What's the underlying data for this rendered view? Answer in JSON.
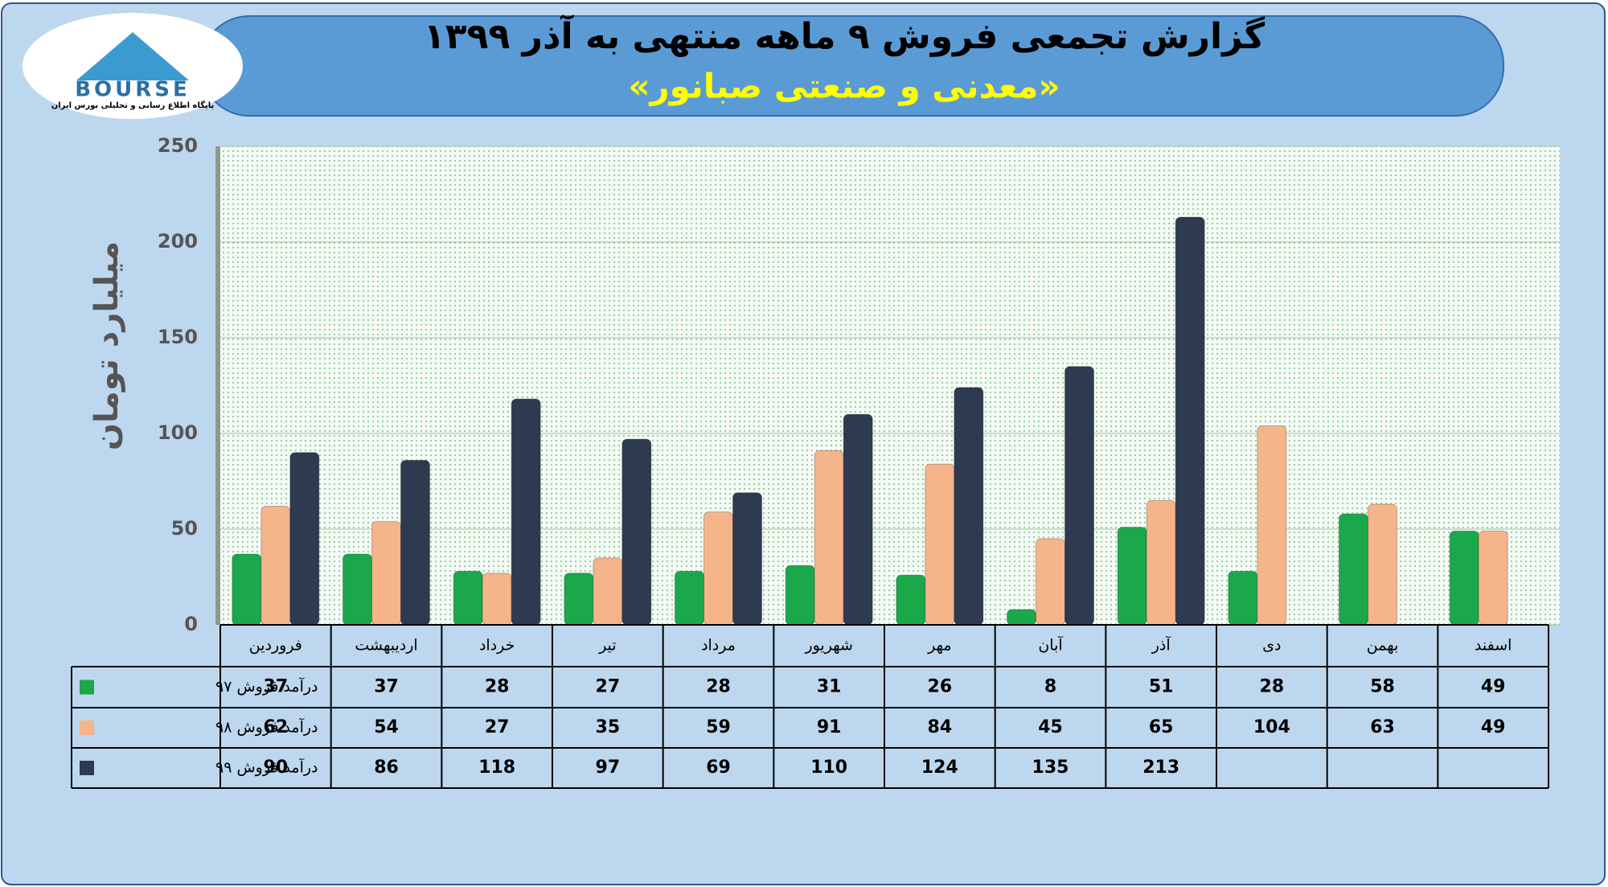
{
  "logo": {
    "text": "BOURSE",
    "caption": "پایگاه اطلاع رسانی و تحلیلی بورس ایران"
  },
  "chart_data": {
    "type": "bar",
    "title": "گزارش تجمعی فروش ۹ ماهه منتهی به آذر ۱۳۹۹",
    "subtitle": "«معدنی و صنعتی صبانور»",
    "y_label": "میلیارد تومان",
    "categories": [
      "فروردین",
      "اردیبهشت",
      "خرداد",
      "تیر",
      "مرداد",
      "شهریور",
      "مهر",
      "آبان",
      "آذر",
      "دی",
      "بهمن",
      "اسفند"
    ],
    "series": [
      {
        "name": "درآمد فروش ۹۷",
        "color": "#1aa84a",
        "values": [
          37,
          37,
          28,
          27,
          28,
          31,
          26,
          8,
          51,
          28,
          58,
          49
        ]
      },
      {
        "name": "درآمد فروش ۹۸",
        "color": "#f6b48a",
        "values": [
          62,
          54,
          27,
          35,
          59,
          91,
          84,
          45,
          65,
          104,
          63,
          49
        ]
      },
      {
        "name": "درآمد فروش ۹۹",
        "color": "#2d3a4f",
        "values": [
          90,
          86,
          118,
          97,
          69,
          110,
          124,
          135,
          213,
          null,
          null,
          null
        ]
      }
    ],
    "ylim": [
      0,
      250
    ],
    "yticks": [
      0,
      50,
      100,
      150,
      200,
      250
    ],
    "grid": true
  }
}
